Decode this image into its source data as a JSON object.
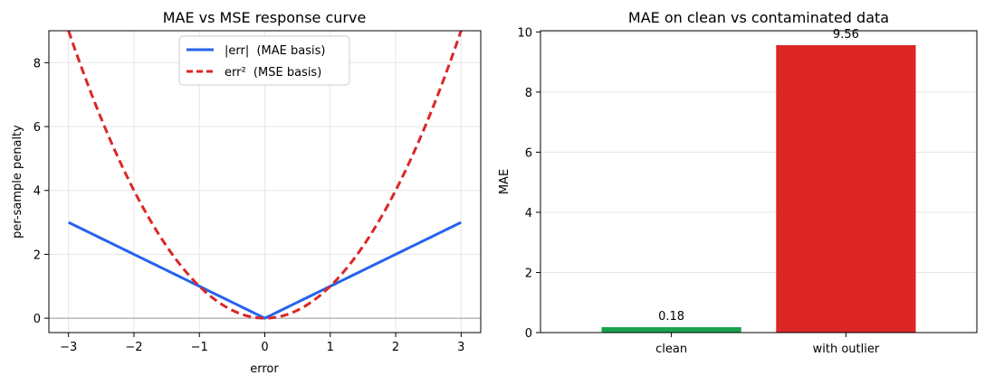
{
  "chart_data": [
    {
      "type": "line",
      "title": "MAE vs MSE response curve",
      "xlabel": "error",
      "ylabel": "per-sample penalty",
      "xlim": [
        -3.3,
        3.3
      ],
      "ylim": [
        -0.45,
        9.0
      ],
      "xticks": [
        -3,
        -2,
        -1,
        0,
        1,
        2,
        3
      ],
      "xtick_labels": [
        "−3",
        "−2",
        "−1",
        "0",
        "1",
        "2",
        "3"
      ],
      "yticks": [
        0,
        2,
        4,
        6,
        8
      ],
      "ytick_labels": [
        "0",
        "2",
        "4",
        "6",
        "8"
      ],
      "grid": true,
      "hline": 0,
      "legend_position": "top-center",
      "x": [
        -3,
        -2.5,
        -2,
        -1.5,
        -1,
        -0.5,
        0,
        0.5,
        1,
        1.5,
        2,
        2.5,
        3
      ],
      "series": [
        {
          "name": "|err|  (MAE basis)",
          "color": "#2563eb",
          "style": "solid",
          "values": [
            3,
            2.5,
            2,
            1.5,
            1,
            0.5,
            0,
            0.5,
            1,
            1.5,
            2,
            2.5,
            3
          ]
        },
        {
          "name": "err²  (MSE basis)",
          "color": "#dc2626",
          "style": "dashed",
          "values": [
            9,
            6.25,
            4,
            2.25,
            1,
            0.25,
            0,
            0.25,
            1,
            2.25,
            4,
            6.25,
            9
          ]
        }
      ]
    },
    {
      "type": "bar",
      "title": "MAE on clean vs contaminated data",
      "xlabel": "",
      "ylabel": "MAE",
      "ylim": [
        0,
        10.04
      ],
      "yticks": [
        0,
        2,
        4,
        6,
        8,
        10
      ],
      "ytick_labels": [
        "0",
        "2",
        "4",
        "6",
        "8",
        "10"
      ],
      "grid": true,
      "categories": [
        "clean",
        "with outlier"
      ],
      "values": [
        0.18,
        9.56
      ],
      "value_labels": [
        "0.18",
        "9.56"
      ],
      "colors": [
        "#16a34a",
        "#dc2626"
      ]
    }
  ]
}
